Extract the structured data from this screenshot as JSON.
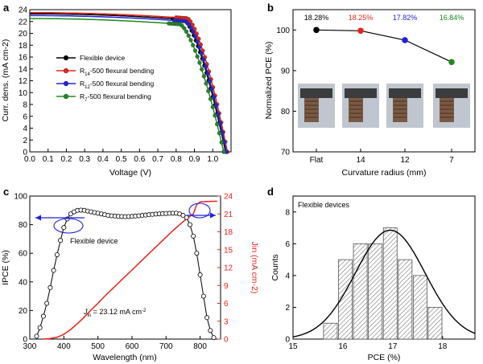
{
  "figure": {
    "panels": [
      "a",
      "b",
      "c",
      "d"
    ]
  },
  "chart_data": [
    {
      "id": "a",
      "type": "line",
      "xlabel": "Voltage (V)",
      "ylabel": "Curr. dens. (mA cm-2)",
      "xlim": [
        0.0,
        1.1
      ],
      "ylim": [
        0,
        24
      ],
      "xticks": [
        "0.0",
        "0.1",
        "0.2",
        "0.3",
        "0.4",
        "0.5",
        "0.6",
        "0.7",
        "0.8",
        "0.9",
        "1.0"
      ],
      "yticks": [
        "0",
        "2",
        "4",
        "6",
        "8",
        "10",
        "12",
        "14",
        "16",
        "18",
        "20",
        "22",
        "24"
      ],
      "legend_position": "middle-left",
      "series": [
        {
          "name": "Flexible device",
          "legend_sub": "",
          "color": "#000000",
          "jsc": 23.3,
          "voc": 1.07,
          "knee": 0.84
        },
        {
          "name": "R",
          "legend_sub": "14",
          "legend_tail": "-500 flexural bending",
          "color": "#e8231c",
          "jsc": 23.5,
          "voc": 1.08,
          "knee": 0.86
        },
        {
          "name": "R",
          "legend_sub": "12",
          "legend_tail": "-500 flexural bending",
          "color": "#2222dd",
          "jsc": 23.0,
          "voc": 1.075,
          "knee": 0.85
        },
        {
          "name": "R",
          "legend_sub": "7",
          "legend_tail": "-500 flexural bending",
          "color": "#1f8a1f",
          "jsc": 22.5,
          "voc": 1.06,
          "knee": 0.82
        }
      ]
    },
    {
      "id": "b",
      "type": "line",
      "xlabel": "Curvature radius (mm)",
      "ylabel": "Normalized PCE (%)",
      "categories": [
        "Flat",
        "14",
        "12",
        "7"
      ],
      "values": [
        100,
        99.8,
        97.5,
        92.1
      ],
      "point_colors": [
        "#000000",
        "#e8231c",
        "#2222dd",
        "#1f8a1f"
      ],
      "annotations": [
        "18.28%",
        "18.25%",
        "17.82%",
        "16.84%"
      ],
      "ylim": [
        70,
        105
      ],
      "yticks": [
        "70",
        "80",
        "90",
        "100"
      ],
      "photos": 4
    },
    {
      "id": "c",
      "type": "line",
      "xlabel": "Wavelength (nm)",
      "ylabel_left": "IPCE (%)",
      "ylabel_right": "Jin (mA cm-2)",
      "xlim": [
        300,
        860
      ],
      "ylim_left": [
        0,
        100
      ],
      "ylim_right": [
        0,
        24
      ],
      "xticks": [
        "300",
        "400",
        "500",
        "600",
        "700",
        "800"
      ],
      "yticks_left": [
        "0",
        "20",
        "40",
        "60",
        "80",
        "100"
      ],
      "yticks_right": [
        "0",
        "3",
        "6",
        "9",
        "12",
        "15",
        "18",
        "21",
        "24"
      ],
      "label_flexible": "Flexible device",
      "jsc_text_prefix": "J",
      "jsc_text_sub": "in",
      "jsc_text_value": " = 23.12 mA cm",
      "jsc_text_exp": "-2",
      "ipce": {
        "x": [
          320,
          330,
          340,
          350,
          360,
          370,
          380,
          390,
          400,
          410,
          420,
          430,
          440,
          450,
          460,
          470,
          480,
          490,
          500,
          510,
          520,
          530,
          540,
          550,
          560,
          570,
          580,
          590,
          600,
          610,
          620,
          630,
          640,
          650,
          660,
          670,
          680,
          690,
          700,
          710,
          720,
          730,
          740,
          750,
          760,
          770,
          780,
          790,
          800,
          810,
          820,
          830,
          840
        ],
        "y": [
          2,
          8,
          16,
          25,
          36,
          48,
          59,
          69,
          78,
          84,
          87.5,
          89,
          90,
          90.2,
          90,
          89.5,
          89,
          88.5,
          88,
          87.5,
          87,
          86.5,
          86.2,
          86,
          85.8,
          85.7,
          85.6,
          85.7,
          85.8,
          86,
          86.2,
          86.5,
          86.7,
          87,
          87.2,
          87.4,
          87.6,
          87.7,
          87.8,
          87.9,
          88,
          88,
          87.5,
          86.5,
          85,
          80,
          72,
          60,
          45,
          30,
          15,
          6,
          1
        ]
      },
      "jin": {
        "x": [
          340,
          360,
          380,
          400,
          420,
          440,
          460,
          480,
          500,
          520,
          540,
          560,
          580,
          600,
          620,
          640,
          660,
          680,
          700,
          720,
          740,
          760,
          780,
          790,
          800,
          820,
          840,
          850
        ],
        "y": [
          0,
          0.1,
          0.3,
          0.8,
          1.6,
          2.6,
          3.7,
          4.9,
          6.0,
          7.2,
          8.3,
          9.4,
          10.5,
          11.6,
          12.7,
          13.8,
          14.9,
          16.0,
          17.1,
          18.2,
          19.2,
          20.2,
          21.0,
          22.6,
          23.0,
          23.1,
          23.12,
          23.12
        ]
      }
    },
    {
      "id": "d",
      "type": "bar",
      "xlabel": "PCE (%)",
      "ylabel": "Counts",
      "label_devices": "Flexible devices",
      "bin_centers": [
        15.75,
        16.05,
        16.35,
        16.65,
        16.95,
        17.25,
        17.55,
        17.85
      ],
      "bin_width": 0.3,
      "values": [
        1,
        5,
        6,
        6,
        7,
        5,
        4,
        2
      ],
      "xlim": [
        15,
        18.65
      ],
      "ylim": [
        0,
        9
      ],
      "xticks": [
        "15",
        "16",
        "17",
        "18"
      ],
      "yticks": [
        "0",
        "2",
        "4",
        "6",
        "8"
      ],
      "fit": {
        "type": "gaussian",
        "mean": 16.95,
        "sigma": 0.7,
        "peak": 6.85
      }
    }
  ]
}
